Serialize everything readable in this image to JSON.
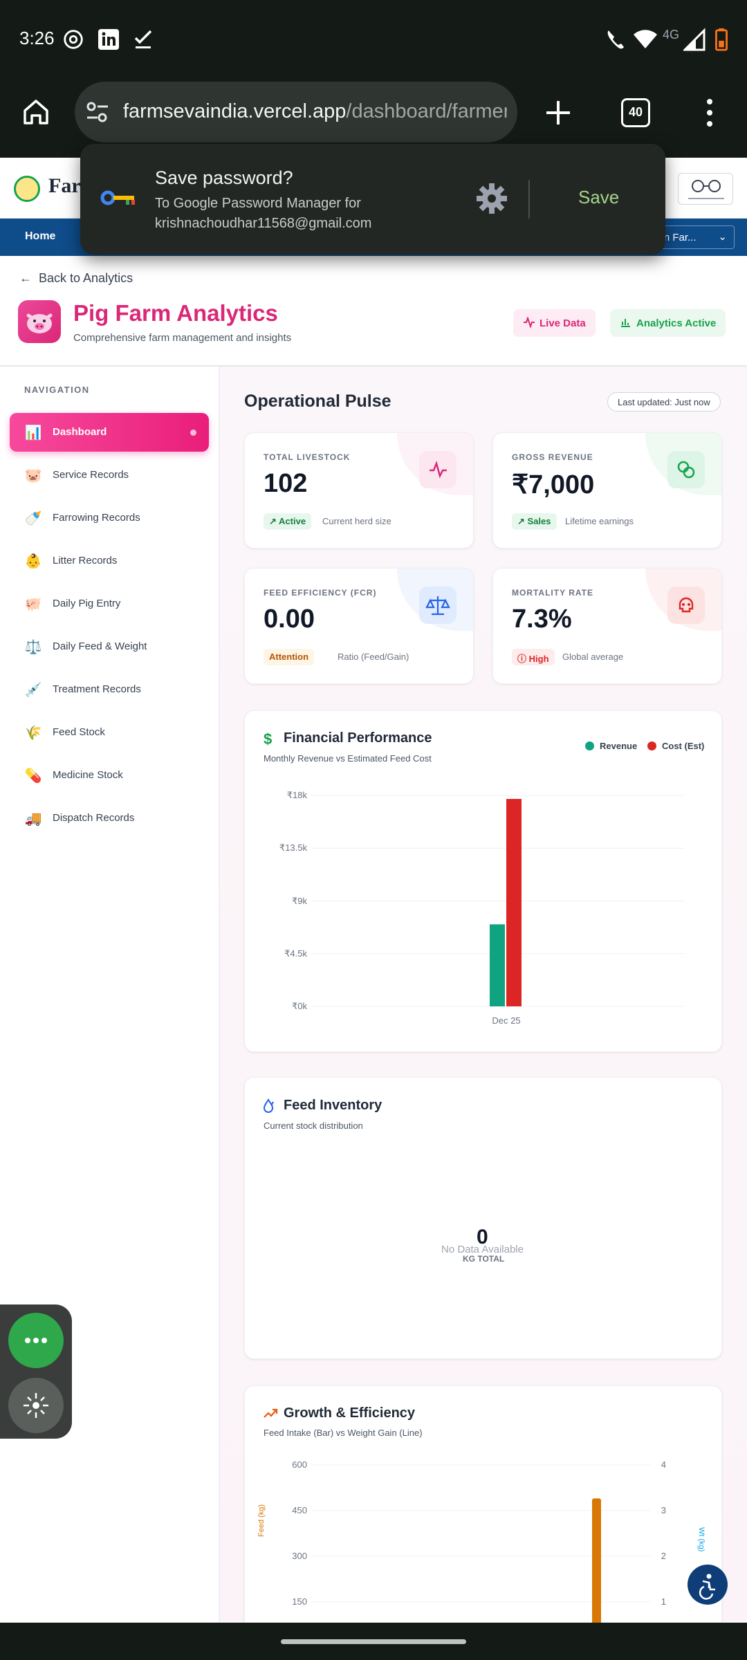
{
  "status_bar": {
    "time": "3:26",
    "network": "4G"
  },
  "browser": {
    "url_host": "farmsevaindia.vercel.app",
    "url_path": "/dashboard/farmer",
    "tab_count": "40"
  },
  "password_prompt": {
    "title": "Save password?",
    "subtitle": "To Google Password Manager for krishnachoudhar11568@gmail.com",
    "save_label": "Save"
  },
  "site": {
    "brand_partial": "Far",
    "nav_home": "Home",
    "nav_select": "wn Far..."
  },
  "page": {
    "back_label": "Back to Analytics",
    "title": "Pig Farm Analytics",
    "subtitle": "Comprehensive farm management and insights",
    "live_label": "Live Data",
    "analytics_label": "Analytics Active"
  },
  "sidebar": {
    "heading": "NAVIGATION",
    "items": [
      {
        "label": "Dashboard",
        "icon": "chart-icon",
        "glyph": "📊"
      },
      {
        "label": "Service Records",
        "icon": "pig-icon",
        "glyph": "🐷"
      },
      {
        "label": "Farrowing Records",
        "icon": "baby-bottle-icon",
        "glyph": "🍼"
      },
      {
        "label": "Litter Records",
        "icon": "baby-icon",
        "glyph": "👶"
      },
      {
        "label": "Daily Pig Entry",
        "icon": "pig-face-icon",
        "glyph": "🐖"
      },
      {
        "label": "Daily Feed & Weight",
        "icon": "scale-icon",
        "glyph": "⚖️"
      },
      {
        "label": "Treatment Records",
        "icon": "syringe-icon",
        "glyph": "💉"
      },
      {
        "label": "Feed Stock",
        "icon": "grain-icon",
        "glyph": "🌾"
      },
      {
        "label": "Medicine Stock",
        "icon": "pill-icon",
        "glyph": "💊"
      },
      {
        "label": "Dispatch Records",
        "icon": "truck-icon",
        "glyph": "🚚"
      }
    ]
  },
  "pulse": {
    "title": "Operational Pulse",
    "updated": "Last updated: Just now",
    "cards": [
      {
        "label": "TOTAL LIVESTOCK",
        "value": "102",
        "badge": "Active",
        "note": "Current herd size",
        "accent": "#db2777"
      },
      {
        "label": "GROSS REVENUE",
        "value": "₹7,000",
        "badge": "Sales",
        "note": "Lifetime earnings",
        "accent": "#16a34a"
      },
      {
        "label": "FEED EFFICIENCY (FCR)",
        "value": "0.00",
        "badge": "Attention",
        "note": "Ratio (Feed/Gain)",
        "accent": "#2563eb"
      },
      {
        "label": "MORTALITY RATE",
        "value": "7.3%",
        "badge": "High",
        "note": "Global average",
        "accent": "#dc2626"
      }
    ]
  },
  "financial": {
    "title": "Financial Performance",
    "subtitle": "Monthly Revenue vs Estimated Feed Cost",
    "legend": [
      "Revenue",
      "Cost (Est)"
    ],
    "y_ticks": [
      "₹18k",
      "₹13.5k",
      "₹9k",
      "₹4.5k",
      "₹0k"
    ]
  },
  "feed_inventory": {
    "title": "Feed Inventory",
    "subtitle": "Current stock distribution",
    "center_value": "0",
    "center_unit": "KG TOTAL",
    "empty_text": "No Data Available"
  },
  "growth": {
    "title": "Growth & Efficiency",
    "subtitle": "Feed Intake (Bar) vs Weight Gain (Line)",
    "left_ticks": [
      "600",
      "450",
      "300",
      "150"
    ],
    "right_ticks": [
      "4",
      "3",
      "2",
      "1"
    ],
    "left_axis": "Feed (kg)",
    "right_axis": "Wt (kg)"
  },
  "chart_data": [
    {
      "type": "bar",
      "title": "Financial Performance",
      "subtitle": "Monthly Revenue vs Estimated Feed Cost",
      "categories": [
        "Dec 25"
      ],
      "series": [
        {
          "name": "Revenue",
          "values": [
            7000
          ],
          "color": "#10a37f"
        },
        {
          "name": "Cost (Est)",
          "values": [
            17700
          ],
          "color": "#dc2626"
        }
      ],
      "ylim": [
        0,
        18000
      ],
      "yticks": [
        "₹0k",
        "₹4.5k",
        "₹9k",
        "₹13.5k",
        "₹18k"
      ],
      "legend": "top-right",
      "grid": true
    },
    {
      "type": "bar",
      "title": "Growth & Efficiency",
      "subtitle": "Feed Intake (Bar) vs Weight Gain (Line)",
      "ylabel": "Feed (kg)",
      "y2label": "Wt (kg)",
      "ylim": [
        0,
        600
      ],
      "y2lim": [
        0,
        4
      ],
      "series": [
        {
          "name": "Feed (kg)",
          "values": [
            490
          ],
          "color": "#d97706"
        }
      ]
    }
  ],
  "colors": {
    "accent": "#db2777",
    "nav_blue": "#0f4c8a",
    "revenue": "#10a37f",
    "cost": "#dc2626",
    "feed": "#d97706"
  }
}
